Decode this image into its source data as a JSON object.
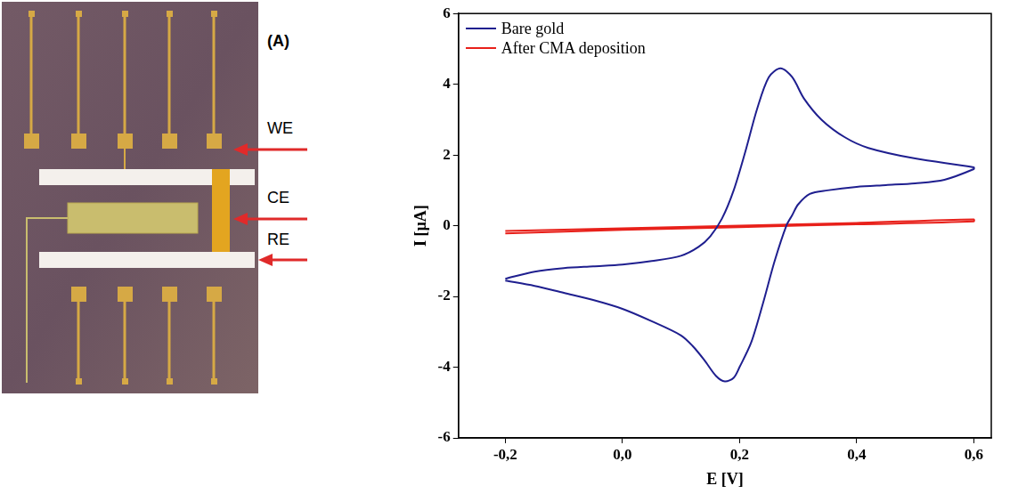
{
  "chart_data": {
    "type": "line",
    "x_label": "E [V]",
    "y_label": "I [µA]",
    "xlim": [
      -0.28,
      0.63
    ],
    "xticks": [
      {
        "value": -0.2,
        "label": "-0,2"
      },
      {
        "value": 0.0,
        "label": "0,0"
      },
      {
        "value": 0.2,
        "label": "0,2"
      },
      {
        "value": 0.4,
        "label": "0,4"
      },
      {
        "value": 0.6,
        "label": "0,6"
      }
    ],
    "ylim": [
      -6,
      6
    ],
    "yticks": [
      -6,
      -4,
      -2,
      0,
      2,
      4,
      6
    ],
    "grid": false,
    "legend": "top left",
    "series": [
      {
        "name": "Bare gold",
        "color": "#1f1f8f",
        "x": [
          -0.2,
          -0.15,
          -0.1,
          -0.05,
          0.0,
          0.05,
          0.1,
          0.13,
          0.15,
          0.17,
          0.19,
          0.21,
          0.23,
          0.25,
          0.27,
          0.29,
          0.31,
          0.34,
          0.38,
          0.42,
          0.5,
          0.6,
          0.6,
          0.55,
          0.5,
          0.45,
          0.4,
          0.35,
          0.32,
          0.3,
          0.29,
          0.28,
          0.26,
          0.24,
          0.22,
          0.2,
          0.19,
          0.175,
          0.16,
          0.14,
          0.12,
          0.1,
          0.05,
          0.0,
          -0.05,
          -0.1,
          -0.15,
          -0.2
        ],
        "values": [
          -1.5,
          -1.3,
          -1.2,
          -1.15,
          -1.1,
          -1.0,
          -0.85,
          -0.6,
          -0.3,
          0.2,
          1.0,
          2.1,
          3.3,
          4.2,
          4.45,
          4.2,
          3.6,
          3.0,
          2.5,
          2.2,
          1.9,
          1.65,
          1.6,
          1.3,
          1.2,
          1.15,
          1.1,
          1.0,
          0.9,
          0.6,
          0.3,
          0.0,
          -1.0,
          -2.2,
          -3.3,
          -4.0,
          -4.3,
          -4.4,
          -4.25,
          -3.8,
          -3.4,
          -3.1,
          -2.7,
          -2.35,
          -2.1,
          -1.9,
          -1.7,
          -1.55
        ]
      },
      {
        "name": "After CMA deposition",
        "color": "#e8201a",
        "x": [
          -0.2,
          0.0,
          0.2,
          0.4,
          0.6,
          0.6,
          0.4,
          0.2,
          0.0,
          -0.2
        ],
        "values": [
          -0.15,
          -0.07,
          0.0,
          0.08,
          0.18,
          0.12,
          0.04,
          -0.04,
          -0.12,
          -0.22
        ]
      }
    ]
  },
  "figure": {
    "panel_label": "(A)",
    "electrode_labels": [
      "WE",
      "CE",
      "RE"
    ]
  }
}
